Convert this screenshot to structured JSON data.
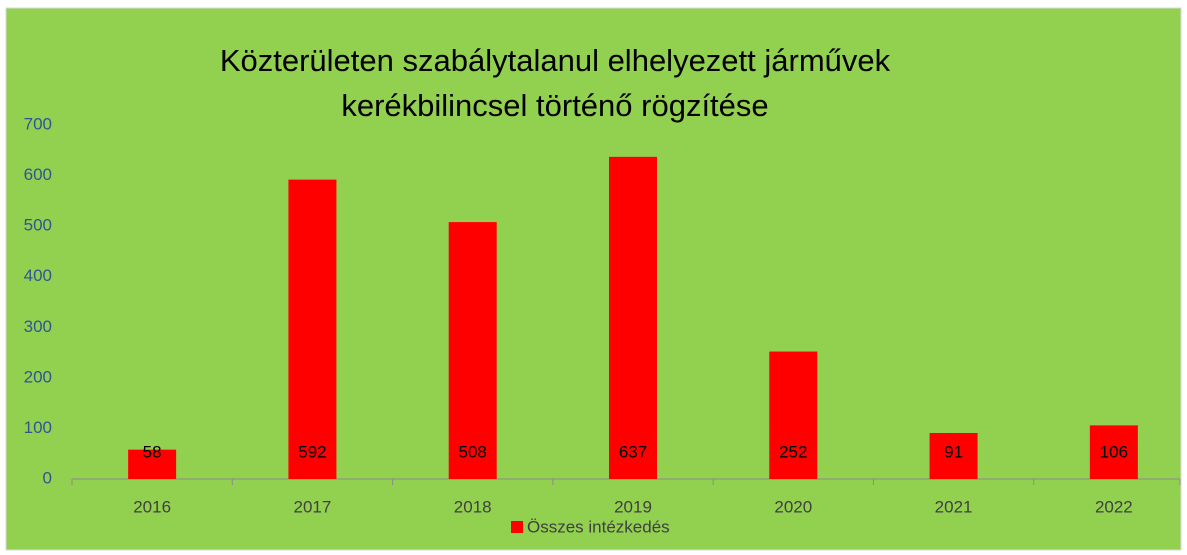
{
  "chart_data": {
    "type": "bar",
    "title": [
      "Közterületen szabálytalanul elhelyezett járművek",
      "kerékbilincsel történő rögzítése"
    ],
    "categories": [
      "2016",
      "2017",
      "2018",
      "2019",
      "2020",
      "2021",
      "2022"
    ],
    "series": [
      {
        "name": "Összes intézkedés",
        "color": "#ff0000",
        "values": [
          58,
          592,
          508,
          637,
          252,
          91,
          106
        ]
      }
    ],
    "ylim": [
      0,
      700
    ],
    "yticks": [
      0,
      100,
      200,
      300,
      400,
      500,
      600,
      700
    ],
    "grid": false,
    "legend": "bottom"
  }
}
